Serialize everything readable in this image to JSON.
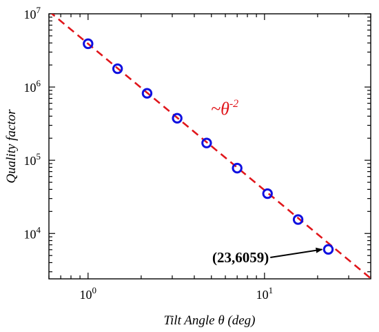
{
  "chart_data": {
    "type": "scatter",
    "xlabel": "Tilt Angle θ (deg)",
    "ylabel": "Quality factor",
    "x_scale": "log",
    "y_scale": "log",
    "xlim": [
      0.6,
      40
    ],
    "ylim": [
      2400,
      10000000
    ],
    "x_ticks": [
      {
        "value": 1,
        "base": "10",
        "exp": "0"
      },
      {
        "value": 10,
        "base": "10",
        "exp": "1"
      }
    ],
    "y_ticks": [
      {
        "value": 10000,
        "base": "10",
        "exp": "4"
      },
      {
        "value": 100000,
        "base": "10",
        "exp": "5"
      },
      {
        "value": 1000000,
        "base": "10",
        "exp": "6"
      },
      {
        "value": 10000000,
        "base": "10",
        "exp": "7"
      }
    ],
    "series": [
      {
        "marker": "open-circle",
        "color": "#1010e0",
        "points": [
          {
            "x": 1.0,
            "y": 3900000
          },
          {
            "x": 1.47,
            "y": 1780000
          },
          {
            "x": 2.16,
            "y": 820000
          },
          {
            "x": 3.2,
            "y": 375000
          },
          {
            "x": 4.7,
            "y": 172000
          },
          {
            "x": 7.0,
            "y": 78000
          },
          {
            "x": 10.4,
            "y": 35000
          },
          {
            "x": 15.5,
            "y": 15500
          },
          {
            "x": 23,
            "y": 6059
          }
        ]
      }
    ],
    "trend_line": {
      "style": "dashed",
      "color": "#e0161b",
      "coefficient": 3900000,
      "exponent": -2,
      "label_prefix": "~θ",
      "label_exp": "-2"
    },
    "annotation": {
      "text": "(23,6059)",
      "x": 23,
      "y": 6059
    },
    "grid": false,
    "legend": "none"
  }
}
